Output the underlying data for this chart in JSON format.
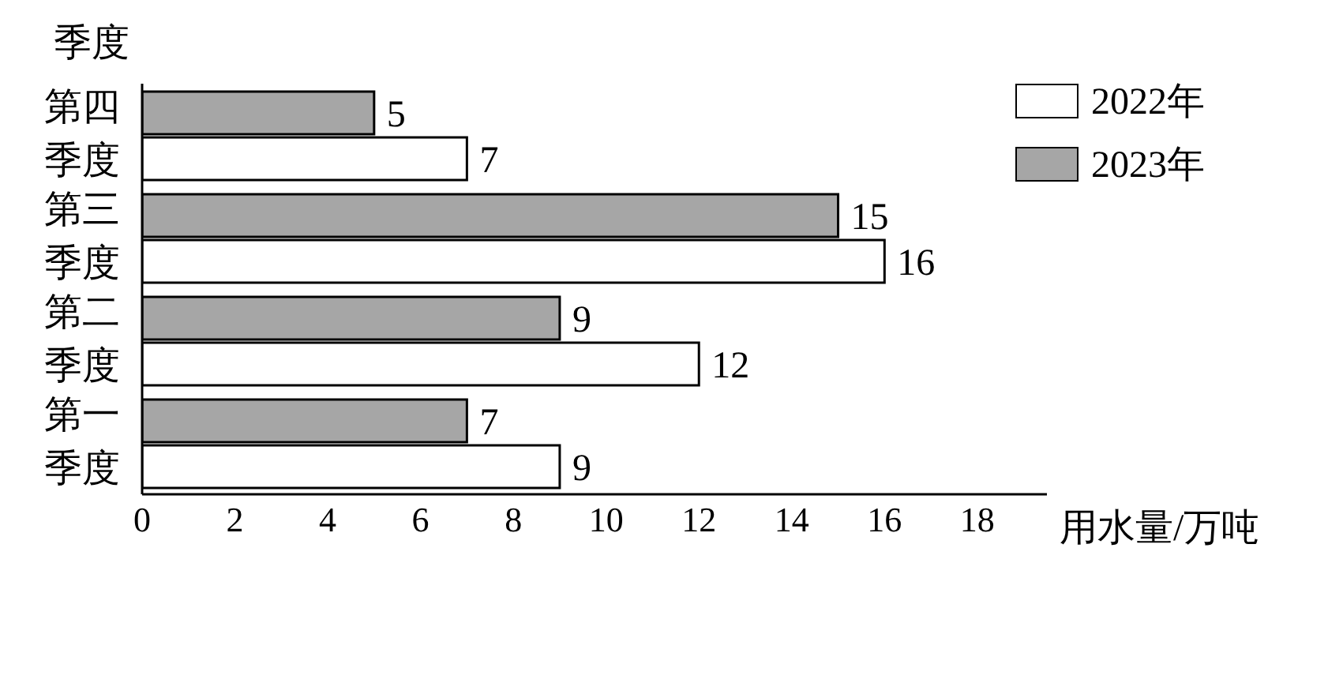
{
  "chart_data": {
    "type": "bar",
    "orientation": "horizontal",
    "ylabel": "季度",
    "xlabel": "用水量/万吨",
    "categories": [
      "第四季度",
      "第三季度",
      "第二季度",
      "第一季度"
    ],
    "series": [
      {
        "name": "2022年",
        "color": "#ffffff",
        "values": [
          7,
          16,
          12,
          9
        ]
      },
      {
        "name": "2023年",
        "color": "#a6a6a6",
        "values": [
          5,
          15,
          9,
          7
        ]
      }
    ],
    "xlim": [
      0,
      19.5
    ],
    "xticks": [
      0,
      2,
      4,
      6,
      8,
      10,
      12,
      14,
      16,
      18
    ],
    "grid": false,
    "legend": "top right",
    "data_labels": true
  }
}
